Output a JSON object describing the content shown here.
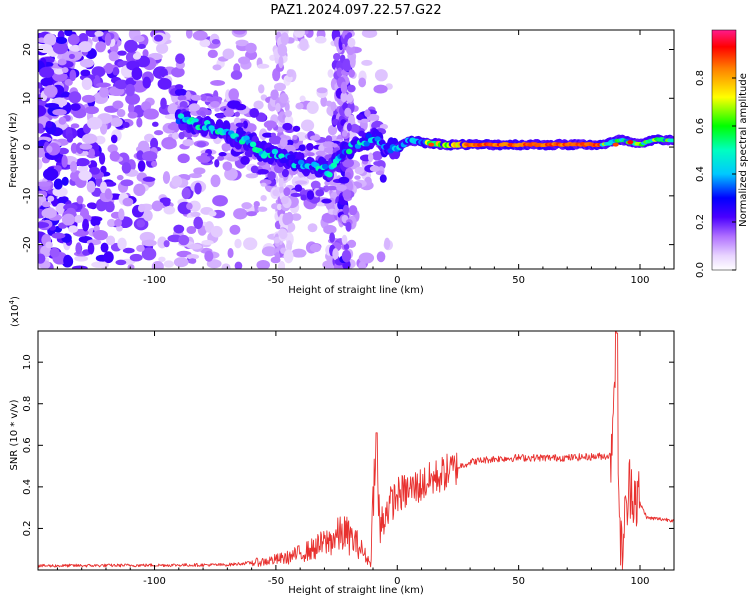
{
  "figure": {
    "title": "PAZ1.2024.097.22.57.G22"
  },
  "chart_data": [
    {
      "type": "heatmap",
      "xlabel": "Height of straight line (km)",
      "ylabel": "Frequency (Hz)",
      "xlim": [
        -148,
        114
      ],
      "ylim": [
        -25,
        24
      ],
      "xticks": [
        -100,
        -50,
        0,
        50,
        100
      ],
      "yticks": [
        -20,
        -10,
        0,
        10,
        20
      ],
      "colorbar": {
        "label": "Normalized spectral amplitude",
        "range": [
          0,
          1
        ],
        "ticks": [
          0.0,
          0.2,
          0.4,
          0.6,
          0.8
        ],
        "colors": [
          "#ffffff",
          "#e6ccff",
          "#c799ff",
          "#8a2be2",
          "#6a0dff",
          "#0000ff",
          "#00bfff",
          "#00ffcc",
          "#00ff00",
          "#ffff00",
          "#ff8000",
          "#ff0000",
          "#ff1493"
        ]
      },
      "ridge": {
        "description_values_freq_hz_by_height_km": [
          [
            -88,
            5.5
          ],
          [
            -80,
            4.5
          ],
          [
            -70,
            3
          ],
          [
            -62,
            1
          ],
          [
            -55,
            -1
          ],
          [
            -48,
            -2
          ],
          [
            -40,
            -3.5
          ],
          [
            -33,
            -4
          ],
          [
            -28,
            -5
          ],
          [
            -22,
            -1
          ],
          [
            -15,
            1
          ],
          [
            -10,
            2
          ],
          [
            -5,
            0
          ],
          [
            0,
            -0.5
          ],
          [
            5,
            1.5
          ],
          [
            10,
            1
          ],
          [
            20,
            0.5
          ],
          [
            30,
            0.5
          ],
          [
            50,
            0.5
          ],
          [
            70,
            0.5
          ],
          [
            85,
            0.5
          ],
          [
            92,
            1.5
          ],
          [
            100,
            0.5
          ],
          [
            106,
            1.5
          ],
          [
            114,
            1.5
          ]
        ],
        "peak_amplitude_range_km": [
          28,
          82
        ]
      },
      "grid": false
    },
    {
      "type": "line",
      "xlabel": "Height of straight line (km)",
      "ylabel": "SNR (10 * v/v)",
      "y_scale_label": "(x10",
      "y_scale_exponent": "4",
      "y_scale_suffix": ")",
      "xlim": [
        -148,
        114
      ],
      "ylim": [
        0,
        1.15
      ],
      "xticks": [
        -100,
        -50,
        0,
        50,
        100
      ],
      "yticks": [
        0.2,
        0.4,
        0.6,
        0.8,
        1.0
      ],
      "series": [
        {
          "color": "#e8312f",
          "profile": [
            [
              -148,
              0.02
            ],
            [
              -70,
              0.025
            ],
            [
              -55,
              0.04
            ],
            [
              -45,
              0.06
            ],
            [
              -35,
              0.1
            ],
            [
              -28,
              0.14
            ],
            [
              -22,
              0.18
            ],
            [
              -16,
              0.12
            ],
            [
              -11,
              0.03
            ],
            [
              -9,
              0.6
            ],
            [
              -7,
              0.18
            ],
            [
              -5,
              0.28
            ],
            [
              0,
              0.36
            ],
            [
              10,
              0.41
            ],
            [
              20,
              0.47
            ],
            [
              30,
              0.52
            ],
            [
              40,
              0.535
            ],
            [
              50,
              0.54
            ],
            [
              60,
              0.54
            ],
            [
              70,
              0.54
            ],
            [
              80,
              0.545
            ],
            [
              88,
              0.55
            ],
            [
              90,
              1.12
            ],
            [
              92,
              0.06
            ],
            [
              96,
              0.42
            ],
            [
              100,
              0.32
            ],
            [
              103,
              0.25
            ],
            [
              114,
              0.24
            ]
          ]
        }
      ],
      "grid": false
    }
  ]
}
